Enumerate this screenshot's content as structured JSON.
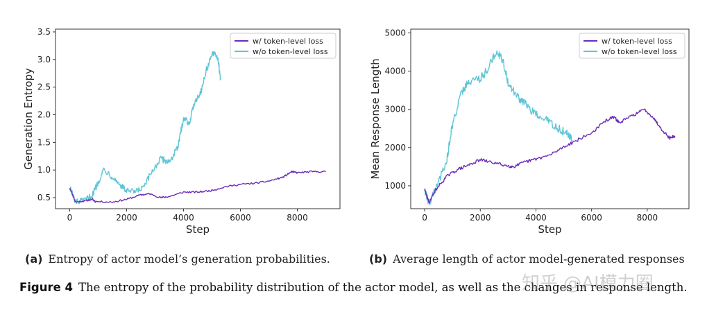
{
  "chart_data": [
    {
      "type": "line",
      "ylabel": "Generation Entropy",
      "xlabel": "Step",
      "xlim": [
        -500,
        9500
      ],
      "ylim": [
        0.3,
        3.55
      ],
      "xticks": [
        0,
        2000,
        4000,
        6000,
        8000
      ],
      "yticks": [
        0.5,
        1.0,
        1.5,
        2.0,
        2.5,
        3.0,
        3.5
      ],
      "legend_position": "top-right",
      "series": [
        {
          "name": "w/ token-level loss",
          "color": "#6a2ab8",
          "noise": 0.015,
          "points": [
            [
              0,
              0.68
            ],
            [
              200,
              0.42
            ],
            [
              500,
              0.44
            ],
            [
              800,
              0.47
            ],
            [
              900,
              0.43
            ],
            [
              1500,
              0.42
            ],
            [
              2000,
              0.47
            ],
            [
              2500,
              0.55
            ],
            [
              2800,
              0.57
            ],
            [
              3200,
              0.5
            ],
            [
              3500,
              0.52
            ],
            [
              4000,
              0.6
            ],
            [
              4500,
              0.6
            ],
            [
              5000,
              0.63
            ],
            [
              5500,
              0.7
            ],
            [
              6000,
              0.74
            ],
            [
              6500,
              0.76
            ],
            [
              7000,
              0.8
            ],
            [
              7500,
              0.87
            ],
            [
              7800,
              0.97
            ],
            [
              8000,
              0.95
            ],
            [
              8500,
              0.97
            ],
            [
              9000,
              0.97
            ]
          ]
        },
        {
          "name": "w/o token-level loss",
          "color": "#5ec5d5",
          "noise": 0.06,
          "points": [
            [
              0,
              0.7
            ],
            [
              200,
              0.42
            ],
            [
              500,
              0.44
            ],
            [
              800,
              0.55
            ],
            [
              1000,
              0.78
            ],
            [
              1200,
              1.02
            ],
            [
              1500,
              0.88
            ],
            [
              1800,
              0.72
            ],
            [
              2000,
              0.62
            ],
            [
              2300,
              0.6
            ],
            [
              2600,
              0.68
            ],
            [
              2900,
              0.98
            ],
            [
              3200,
              1.2
            ],
            [
              3500,
              1.15
            ],
            [
              3800,
              1.4
            ],
            [
              4000,
              1.95
            ],
            [
              4200,
              1.85
            ],
            [
              4400,
              2.25
            ],
            [
              4600,
              2.4
            ],
            [
              4800,
              2.8
            ],
            [
              5000,
              3.1
            ],
            [
              5200,
              3.05
            ],
            [
              5300,
              2.65
            ]
          ]
        }
      ]
    },
    {
      "type": "line",
      "ylabel": "Mean Response Length",
      "xlabel": "Step",
      "xlim": [
        -500,
        9500
      ],
      "ylim": [
        400,
        5100
      ],
      "xticks": [
        0,
        2000,
        4000,
        6000,
        8000
      ],
      "yticks": [
        1000,
        2000,
        3000,
        4000,
        5000
      ],
      "legend_position": "top-right",
      "series": [
        {
          "name": "w/ token-level loss",
          "color": "#6a2ab8",
          "noise": 40,
          "points": [
            [
              0,
              900
            ],
            [
              150,
              560
            ],
            [
              400,
              900
            ],
            [
              800,
              1250
            ],
            [
              1200,
              1430
            ],
            [
              1600,
              1550
            ],
            [
              2000,
              1680
            ],
            [
              2500,
              1600
            ],
            [
              3000,
              1520
            ],
            [
              3200,
              1500
            ],
            [
              3600,
              1620
            ],
            [
              4000,
              1700
            ],
            [
              4500,
              1800
            ],
            [
              5000,
              2020
            ],
            [
              5500,
              2200
            ],
            [
              6000,
              2380
            ],
            [
              6500,
              2700
            ],
            [
              6800,
              2800
            ],
            [
              7000,
              2650
            ],
            [
              7500,
              2850
            ],
            [
              7900,
              3000
            ],
            [
              8200,
              2800
            ],
            [
              8500,
              2500
            ],
            [
              8800,
              2250
            ],
            [
              9000,
              2300
            ]
          ]
        },
        {
          "name": "w/o token-level loss",
          "color": "#5ec5d5",
          "noise": 110,
          "points": [
            [
              0,
              900
            ],
            [
              150,
              560
            ],
            [
              400,
              900
            ],
            [
              800,
              1700
            ],
            [
              1000,
              2600
            ],
            [
              1300,
              3400
            ],
            [
              1600,
              3750
            ],
            [
              2000,
              3800
            ],
            [
              2300,
              4100
            ],
            [
              2600,
              4550
            ],
            [
              2800,
              4300
            ],
            [
              3000,
              3700
            ],
            [
              3300,
              3350
            ],
            [
              3600,
              3150
            ],
            [
              4000,
              2850
            ],
            [
              4400,
              2700
            ],
            [
              4800,
              2500
            ],
            [
              5100,
              2380
            ],
            [
              5300,
              2200
            ]
          ]
        }
      ]
    }
  ],
  "captions": {
    "a_tag": "(a)",
    "a_text": "Entropy of actor model’s generation probabilities.",
    "b_tag": "(b)",
    "b_text": "Average length of actor model-generated responses",
    "figure_label": "Figure 4",
    "figure_text": "The entropy of the probability distribution of the actor model, as well as the changes in response length."
  },
  "watermark": "知乎 @AI模力圈"
}
